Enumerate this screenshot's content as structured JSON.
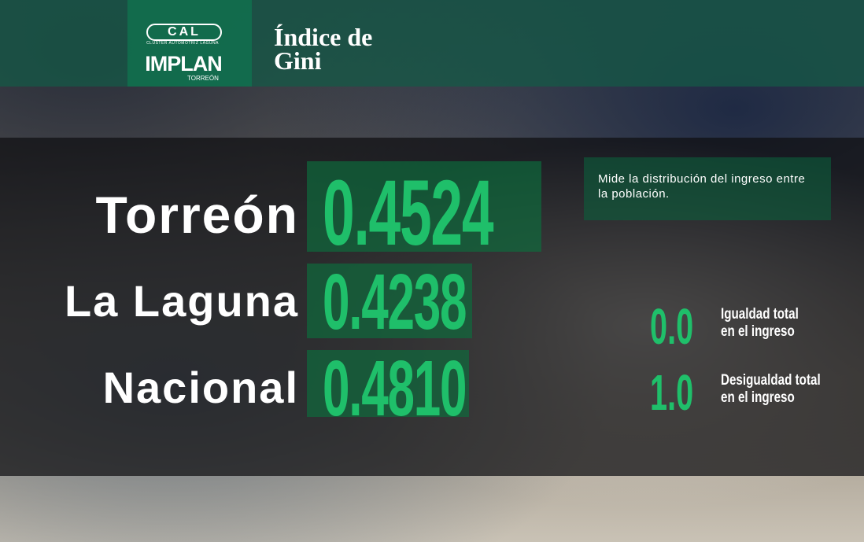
{
  "header": {
    "logo_mark": "CAL",
    "logo_subtitle": "CLÚSTER AUTOMOTRIZ LAGUNA",
    "brand": "IMPLAN",
    "brand_city": "TORREÓN",
    "title_line1": "Índice de",
    "title_line2": "Gini"
  },
  "rows": [
    {
      "place": "Torreón",
      "value": "0.4524"
    },
    {
      "place": "La Laguna",
      "value": "0.4238"
    },
    {
      "place": "Nacional",
      "value": "0.4810"
    }
  ],
  "description": "Mide la distribución del ingreso entre la población.",
  "scale": [
    {
      "value": "0.0",
      "line1": "Igualdad total",
      "line2": "en el ingreso"
    },
    {
      "value": "1.0",
      "line1": "Desigualdad total",
      "line2": "en el ingreso"
    }
  ]
}
